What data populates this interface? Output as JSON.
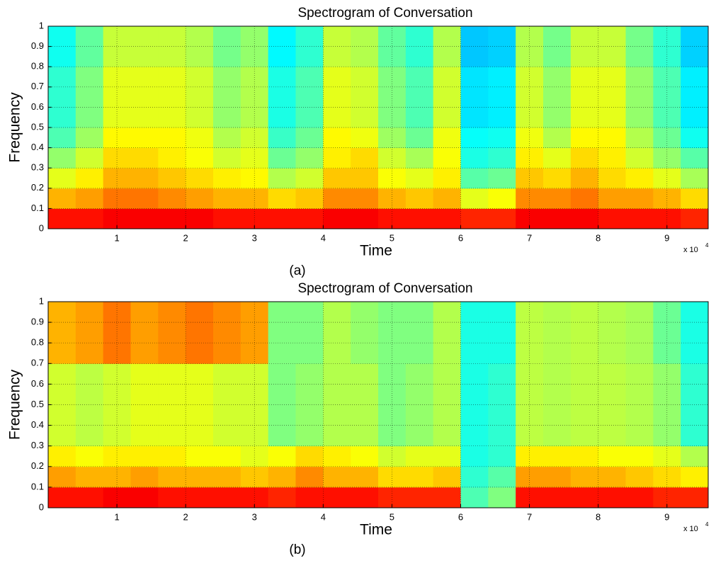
{
  "chart_data": [
    {
      "type": "heatmap",
      "title": "Spectrogram of Conversation",
      "x_label": "Time",
      "y_label": "Frequency",
      "caption": "(a)",
      "x_multiplier": {
        "base": "x 10",
        "power": "4"
      },
      "xlim": [
        0,
        96000
      ],
      "ylim": [
        0,
        1
      ],
      "clim": [
        0,
        1
      ],
      "colormap": "jet",
      "grid": true,
      "xticks": [
        {
          "value": 10000,
          "label": "1"
        },
        {
          "value": 20000,
          "label": "2"
        },
        {
          "value": 30000,
          "label": "3"
        },
        {
          "value": 40000,
          "label": "4"
        },
        {
          "value": 50000,
          "label": "5"
        },
        {
          "value": 60000,
          "label": "6"
        },
        {
          "value": 70000,
          "label": "7"
        },
        {
          "value": 80000,
          "label": "8"
        },
        {
          "value": 90000,
          "label": "9"
        }
      ],
      "yticks": [
        0,
        0.1,
        0.2,
        0.3,
        0.4,
        0.5,
        0.6,
        0.7,
        0.8,
        0.9,
        1
      ],
      "z": [
        [
          0.86,
          0.86,
          0.88,
          0.88,
          0.88,
          0.88,
          0.86,
          0.86,
          0.86,
          0.86,
          0.88,
          0.88,
          0.86,
          0.86,
          0.86,
          0.84,
          0.84,
          0.88,
          0.88,
          0.88,
          0.86,
          0.86,
          0.86,
          0.84
        ],
        [
          0.7,
          0.72,
          0.76,
          0.76,
          0.74,
          0.72,
          0.7,
          0.7,
          0.66,
          0.68,
          0.74,
          0.74,
          0.7,
          0.68,
          0.7,
          0.6,
          0.62,
          0.74,
          0.74,
          0.76,
          0.72,
          0.72,
          0.7,
          0.66
        ],
        [
          0.6,
          0.64,
          0.7,
          0.7,
          0.68,
          0.66,
          0.64,
          0.63,
          0.55,
          0.58,
          0.68,
          0.68,
          0.62,
          0.6,
          0.64,
          0.46,
          0.48,
          0.68,
          0.66,
          0.7,
          0.66,
          0.64,
          0.6,
          0.54
        ],
        [
          0.52,
          0.58,
          0.66,
          0.66,
          0.64,
          0.62,
          0.58,
          0.6,
          0.48,
          0.52,
          0.64,
          0.66,
          0.58,
          0.54,
          0.62,
          0.4,
          0.42,
          0.64,
          0.6,
          0.66,
          0.64,
          0.58,
          0.52,
          0.46
        ],
        [
          0.45,
          0.53,
          0.63,
          0.63,
          0.63,
          0.61,
          0.55,
          0.58,
          0.43,
          0.48,
          0.63,
          0.61,
          0.53,
          0.48,
          0.61,
          0.38,
          0.39,
          0.61,
          0.55,
          0.63,
          0.63,
          0.55,
          0.48,
          0.39
        ],
        [
          0.42,
          0.5,
          0.6,
          0.6,
          0.6,
          0.58,
          0.52,
          0.55,
          0.4,
          0.45,
          0.6,
          0.58,
          0.5,
          0.45,
          0.58,
          0.35,
          0.36,
          0.58,
          0.52,
          0.6,
          0.6,
          0.52,
          0.45,
          0.36
        ],
        [
          0.42,
          0.5,
          0.6,
          0.6,
          0.6,
          0.58,
          0.52,
          0.55,
          0.4,
          0.45,
          0.6,
          0.58,
          0.5,
          0.45,
          0.58,
          0.35,
          0.36,
          0.58,
          0.52,
          0.6,
          0.6,
          0.52,
          0.45,
          0.36
        ],
        [
          0.42,
          0.5,
          0.6,
          0.6,
          0.6,
          0.58,
          0.52,
          0.55,
          0.4,
          0.45,
          0.6,
          0.58,
          0.5,
          0.45,
          0.58,
          0.35,
          0.36,
          0.58,
          0.52,
          0.6,
          0.6,
          0.52,
          0.45,
          0.36
        ],
        [
          0.39,
          0.47,
          0.57,
          0.57,
          0.57,
          0.55,
          0.49,
          0.52,
          0.37,
          0.42,
          0.57,
          0.55,
          0.47,
          0.42,
          0.55,
          0.32,
          0.33,
          0.55,
          0.49,
          0.57,
          0.57,
          0.49,
          0.42,
          0.33
        ],
        [
          0.39,
          0.47,
          0.57,
          0.57,
          0.57,
          0.55,
          0.49,
          0.52,
          0.37,
          0.42,
          0.57,
          0.55,
          0.47,
          0.42,
          0.55,
          0.32,
          0.33,
          0.55,
          0.49,
          0.57,
          0.57,
          0.49,
          0.42,
          0.33
        ]
      ]
    },
    {
      "type": "heatmap",
      "title": "Spectrogram of Conversation",
      "x_label": "Time",
      "y_label": "Frequency",
      "caption": "(b)",
      "x_multiplier": {
        "base": "x 10",
        "power": "4"
      },
      "xlim": [
        0,
        96000
      ],
      "ylim": [
        0,
        1
      ],
      "clim": [
        0,
        1
      ],
      "colormap": "jet",
      "grid": true,
      "xticks": [
        {
          "value": 10000,
          "label": "1"
        },
        {
          "value": 20000,
          "label": "2"
        },
        {
          "value": 30000,
          "label": "3"
        },
        {
          "value": 40000,
          "label": "4"
        },
        {
          "value": 50000,
          "label": "5"
        },
        {
          "value": 60000,
          "label": "6"
        },
        {
          "value": 70000,
          "label": "7"
        },
        {
          "value": 80000,
          "label": "8"
        },
        {
          "value": 90000,
          "label": "9"
        }
      ],
      "yticks": [
        0,
        0.1,
        0.2,
        0.3,
        0.4,
        0.5,
        0.6,
        0.7,
        0.8,
        0.9,
        1
      ],
      "z": [
        [
          0.86,
          0.86,
          0.88,
          0.88,
          0.86,
          0.86,
          0.86,
          0.86,
          0.84,
          0.86,
          0.86,
          0.86,
          0.84,
          0.84,
          0.84,
          0.45,
          0.5,
          0.86,
          0.86,
          0.86,
          0.86,
          0.86,
          0.84,
          0.84
        ],
        [
          0.72,
          0.7,
          0.7,
          0.72,
          0.7,
          0.7,
          0.7,
          0.68,
          0.7,
          0.74,
          0.7,
          0.7,
          0.66,
          0.66,
          0.68,
          0.42,
          0.46,
          0.72,
          0.72,
          0.7,
          0.7,
          0.68,
          0.66,
          0.64
        ],
        [
          0.64,
          0.62,
          0.64,
          0.64,
          0.64,
          0.62,
          0.62,
          0.6,
          0.62,
          0.66,
          0.64,
          0.62,
          0.58,
          0.6,
          0.6,
          0.4,
          0.42,
          0.64,
          0.64,
          0.64,
          0.62,
          0.62,
          0.6,
          0.55
        ],
        [
          0.58,
          0.56,
          0.58,
          0.6,
          0.6,
          0.6,
          0.58,
          0.58,
          0.5,
          0.52,
          0.55,
          0.55,
          0.5,
          0.52,
          0.55,
          0.4,
          0.42,
          0.56,
          0.55,
          0.56,
          0.56,
          0.55,
          0.52,
          0.42
        ],
        [
          0.58,
          0.56,
          0.58,
          0.6,
          0.6,
          0.6,
          0.58,
          0.58,
          0.5,
          0.52,
          0.55,
          0.55,
          0.5,
          0.52,
          0.55,
          0.4,
          0.42,
          0.56,
          0.55,
          0.56,
          0.56,
          0.55,
          0.52,
          0.42
        ],
        [
          0.58,
          0.56,
          0.58,
          0.6,
          0.6,
          0.6,
          0.58,
          0.58,
          0.5,
          0.52,
          0.55,
          0.55,
          0.5,
          0.52,
          0.55,
          0.4,
          0.42,
          0.56,
          0.55,
          0.56,
          0.56,
          0.55,
          0.52,
          0.42
        ],
        [
          0.58,
          0.56,
          0.58,
          0.6,
          0.6,
          0.6,
          0.58,
          0.58,
          0.5,
          0.52,
          0.55,
          0.55,
          0.5,
          0.52,
          0.55,
          0.4,
          0.42,
          0.56,
          0.55,
          0.56,
          0.56,
          0.55,
          0.52,
          0.42
        ],
        [
          0.7,
          0.72,
          0.76,
          0.72,
          0.74,
          0.76,
          0.74,
          0.72,
          0.5,
          0.5,
          0.55,
          0.52,
          0.5,
          0.5,
          0.55,
          0.4,
          0.4,
          0.56,
          0.55,
          0.56,
          0.55,
          0.54,
          0.48,
          0.4
        ],
        [
          0.7,
          0.72,
          0.76,
          0.72,
          0.74,
          0.76,
          0.74,
          0.72,
          0.5,
          0.5,
          0.55,
          0.52,
          0.5,
          0.5,
          0.55,
          0.4,
          0.4,
          0.56,
          0.55,
          0.56,
          0.55,
          0.54,
          0.48,
          0.4
        ],
        [
          0.7,
          0.72,
          0.76,
          0.72,
          0.74,
          0.76,
          0.74,
          0.72,
          0.5,
          0.5,
          0.55,
          0.52,
          0.5,
          0.5,
          0.55,
          0.4,
          0.4,
          0.56,
          0.55,
          0.56,
          0.55,
          0.54,
          0.48,
          0.4
        ]
      ]
    }
  ]
}
